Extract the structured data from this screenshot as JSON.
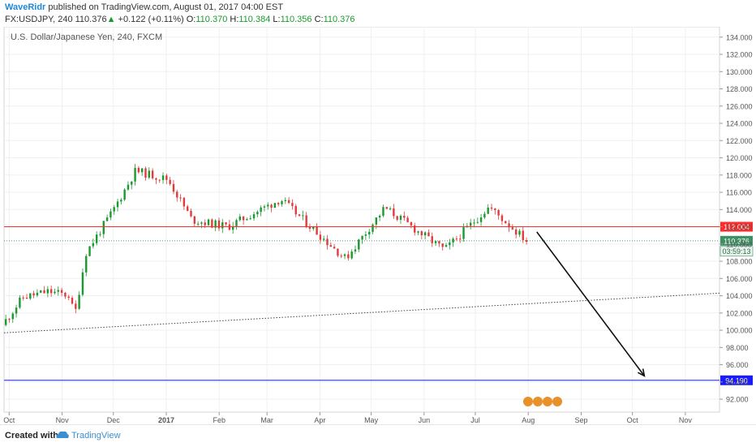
{
  "header": {
    "author": "WaveRidr",
    "published_text": "published on TradingView.com, August 01, 2017 04:00 EST",
    "symbol": "FX:USDJPY, 240",
    "last": "110.376",
    "change": "+0.122 (+0.11%)",
    "o_label": "O:",
    "o_value": "110.370",
    "h_label": "H:",
    "h_value": "110.384",
    "l_label": "L:",
    "l_value": "110.356",
    "c_label": "C:",
    "c_value": "110.376"
  },
  "footer": {
    "created_with": "Created with",
    "brand": "TradingView"
  },
  "colors": {
    "up": "#1a9a2e",
    "down": "#e23b3b",
    "resistance": "#ff2b2b",
    "target": "#1a1aff",
    "price_tag": "#3f8f63",
    "accent": "#1e88d7"
  },
  "chart_data": {
    "type": "candlestick",
    "title": "U.S. Dollar/Japanese Yen, 240, FXCM",
    "ylim": [
      90.5,
      135.2
    ],
    "y_ticks": [
      "134.000",
      "132.000",
      "130.000",
      "128.000",
      "126.000",
      "124.000",
      "122.000",
      "120.000",
      "118.000",
      "116.000",
      "114.000",
      "112.000",
      "110.000",
      "108.000",
      "106.000",
      "104.000",
      "102.000",
      "100.000",
      "98.000",
      "96.000",
      "94.000",
      "92.000"
    ],
    "x_ticks": [
      "Oct",
      "Nov",
      "Dec",
      "2017",
      "Feb",
      "Mar",
      "Apr",
      "May",
      "Jun",
      "Jul",
      "Aug",
      "Sep",
      "Oct",
      "Nov"
    ],
    "x_tick_dates": [
      "2016-10-01",
      "2016-11-01",
      "2016-12-01",
      "2017-01-01",
      "2017-02-01",
      "2017-03-01",
      "2017-04-01",
      "2017-05-01",
      "2017-06-01",
      "2017-07-01",
      "2017-08-01",
      "2017-09-01",
      "2017-10-01",
      "2017-11-01"
    ],
    "x_range": [
      "2016-09-28",
      "2017-11-21"
    ],
    "price_path": [
      {
        "date": "2016-09-28",
        "value": 100.6
      },
      {
        "date": "2016-10-10",
        "value": 103.8
      },
      {
        "date": "2016-10-25",
        "value": 104.5
      },
      {
        "date": "2016-11-07",
        "value": 104.0
      },
      {
        "date": "2016-11-09",
        "value": 101.2
      },
      {
        "date": "2016-11-16",
        "value": 109.0
      },
      {
        "date": "2016-12-01",
        "value": 113.6
      },
      {
        "date": "2016-12-15",
        "value": 118.5
      },
      {
        "date": "2017-01-03",
        "value": 117.5
      },
      {
        "date": "2017-01-17",
        "value": 112.8
      },
      {
        "date": "2017-02-07",
        "value": 112.0
      },
      {
        "date": "2017-03-10",
        "value": 115.2
      },
      {
        "date": "2017-04-17",
        "value": 108.3
      },
      {
        "date": "2017-05-10",
        "value": 114.2
      },
      {
        "date": "2017-06-14",
        "value": 109.3
      },
      {
        "date": "2017-07-10",
        "value": 114.3
      },
      {
        "date": "2017-08-01",
        "value": 110.4
      }
    ],
    "horizontal_lines": [
      {
        "value": 112.004,
        "label": "112.004",
        "style": "solid",
        "color": "#ff2b2b"
      },
      {
        "value": 94.19,
        "label": "94.190",
        "style": "solid",
        "color": "#1a1aff"
      },
      {
        "value": 110.376,
        "label": "110.376",
        "style": "dotted",
        "color": "#3f8f63"
      }
    ],
    "trend_line": [
      {
        "date": "2016-09-28",
        "value": 99.7
      },
      {
        "date": "2017-11-21",
        "value": 104.3
      }
    ],
    "arrow": [
      {
        "date": "2017-08-06",
        "value": 111.4
      },
      {
        "date": "2017-10-08",
        "value": 94.7
      }
    ],
    "last_price": "110.376",
    "countdown": "03:59:13",
    "grid": true
  }
}
